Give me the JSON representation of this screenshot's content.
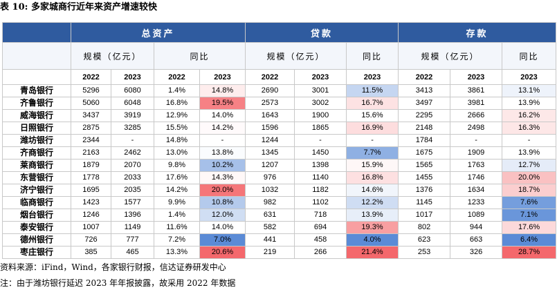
{
  "title": "表 10: 多家城商行近年来资产增速较快",
  "colors": {
    "header_bg": "#2f5b9f",
    "heat_low": "#5b8bd6",
    "heat_mid": "#ffffff",
    "heat_high": "#f4686c"
  },
  "table": {
    "groups": [
      "总资产",
      "贷款",
      "存款"
    ],
    "subheaders": [
      "规模（亿元）",
      "同比",
      "规模（亿元）",
      "同比",
      "规模（亿元）",
      "同比"
    ],
    "years": [
      "2022",
      "2023",
      "2022",
      "2023",
      "2022",
      "2023",
      "2023",
      "2022",
      "2023",
      "2023"
    ],
    "rows": [
      {
        "bank": "青岛银行",
        "values": [
          "5296",
          "6080",
          "1.4%",
          "14.8%",
          "2690",
          "3001",
          "11.5%",
          "3413",
          "3861",
          "13.1%"
        ]
      },
      {
        "bank": "齐鲁银行",
        "values": [
          "5060",
          "6048",
          "16.8%",
          "19.5%",
          "2573",
          "3002",
          "16.7%",
          "3497",
          "3981",
          "13.9%"
        ]
      },
      {
        "bank": "威海银行",
        "values": [
          "3437",
          "3919",
          "12.9%",
          "14.0%",
          "1643",
          "1900",
          "15.6%",
          "2295",
          "2666",
          "16.2%"
        ]
      },
      {
        "bank": "日照银行",
        "values": [
          "2875",
          "3285",
          "15.5%",
          "14.2%",
          "1596",
          "1865",
          "16.9%",
          "2148",
          "2498",
          "16.3%"
        ]
      },
      {
        "bank": "潍坊银行",
        "values": [
          "2344",
          "-",
          "14.8%",
          "-",
          "1244",
          "-",
          "-",
          "1784",
          "-",
          "-"
        ]
      },
      {
        "bank": "齐商银行",
        "values": [
          "2163",
          "2462",
          "13.0%",
          "13.8%",
          "1345",
          "1450",
          "7.7%",
          "1675",
          "1909",
          "13.9%"
        ]
      },
      {
        "bank": "莱商银行",
        "values": [
          "1879",
          "2070",
          "9.8%",
          "10.2%",
          "1207",
          "1398",
          "15.9%",
          "1565",
          "1763",
          "12.7%"
        ]
      },
      {
        "bank": "东营银行",
        "values": [
          "1778",
          "2033",
          "17.6%",
          "14.3%",
          "976",
          "1140",
          "16.8%",
          "1455",
          "1746",
          "20.0%"
        ]
      },
      {
        "bank": "济宁银行",
        "values": [
          "1695",
          "2035",
          "14.2%",
          "20.0%",
          "1032",
          "1182",
          "14.6%",
          "1376",
          "1634",
          "18.7%"
        ]
      },
      {
        "bank": "临商银行",
        "values": [
          "1423",
          "1577",
          "9.9%",
          "10.8%",
          "982",
          "1102",
          "12.2%",
          "1145",
          "1233",
          "7.6%"
        ]
      },
      {
        "bank": "烟台银行",
        "values": [
          "1246",
          "1396",
          "1.4%",
          "12.0%",
          "631",
          "718",
          "13.9%",
          "1017",
          "1089",
          "7.1%"
        ]
      },
      {
        "bank": "泰安银行",
        "values": [
          "1007",
          "1149",
          "11.6%",
          "14.0%",
          "582",
          "694",
          "19.3%",
          "802",
          "944",
          "17.6%"
        ]
      },
      {
        "bank": "德州银行",
        "values": [
          "726",
          "777",
          "7.2%",
          "7.0%",
          "441",
          "458",
          "4.0%",
          "623",
          "663",
          "6.4%"
        ]
      },
      {
        "bank": "枣庄银行",
        "values": [
          "385",
          "465",
          "13.3%",
          "20.6%",
          "219",
          "266",
          "21.4%",
          "253",
          "326",
          "28.7%"
        ]
      }
    ]
  },
  "source": "资料来源：iFind，Wind，各家银行财报，信达证券研发中心",
  "note": "注：由于潍坊银行延迟 2023 年年报披露，故采用 2022 年数据"
}
